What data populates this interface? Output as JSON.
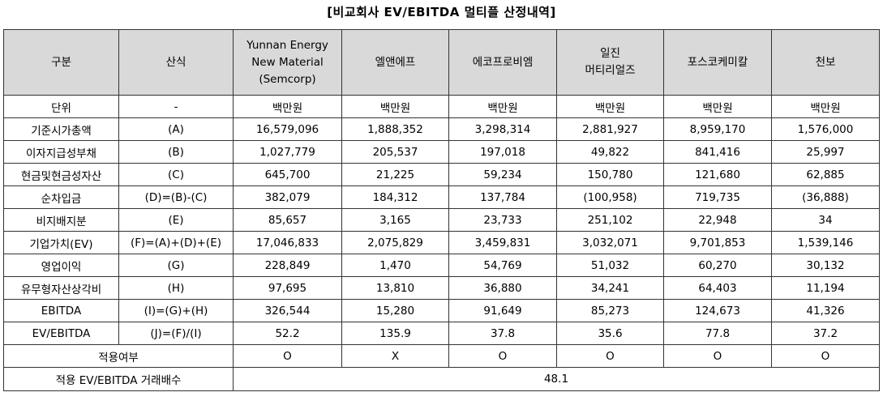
{
  "title": "[비교회사 EV/EBITDA 멀티플 산정내역]",
  "headers": {
    "label": "구분",
    "formula": "산식",
    "companies": [
      {
        "line1": "Yunnan Energy",
        "line2": "New Material",
        "line3": "(Semcorp)"
      },
      {
        "line1": "엘앤에프",
        "line2": "",
        "line3": ""
      },
      {
        "line1": "에코프로비엠",
        "line2": "",
        "line3": ""
      },
      {
        "line1": "일진",
        "line2": "머티리얼즈",
        "line3": ""
      },
      {
        "line1": "포스코케미칼",
        "line2": "",
        "line3": ""
      },
      {
        "line1": "천보",
        "line2": "",
        "line3": ""
      }
    ]
  },
  "rows": [
    {
      "label": "단위",
      "formula": "-",
      "values": [
        "백만원",
        "백만원",
        "백만원",
        "백만원",
        "백만원",
        "백만원"
      ]
    },
    {
      "label": "기준시가총액",
      "formula": "(A)",
      "values": [
        "16,579,096",
        "1,888,352",
        "3,298,314",
        "2,881,927",
        "8,959,170",
        "1,576,000"
      ]
    },
    {
      "label": "이자지급성부채",
      "formula": "(B)",
      "values": [
        "1,027,779",
        "205,537",
        "197,018",
        "49,822",
        "841,416",
        "25,997"
      ]
    },
    {
      "label": "현금및현금성자산",
      "formula": "(C)",
      "values": [
        "645,700",
        "21,225",
        "59,234",
        "150,780",
        "121,680",
        "62,885"
      ]
    },
    {
      "label": "순차입금",
      "formula": "(D)=(B)-(C)",
      "values": [
        "382,079",
        "184,312",
        "137,784",
        "(100,958)",
        "719,735",
        "(36,888)"
      ]
    },
    {
      "label": "비지배지분",
      "formula": "(E)",
      "values": [
        "85,657",
        "3,165",
        "23,733",
        "251,102",
        "22,948",
        "34"
      ]
    },
    {
      "label": "기업가치(EV)",
      "formula": "(F)=(A)+(D)+(E)",
      "values": [
        "17,046,833",
        "2,075,829",
        "3,459,831",
        "3,032,071",
        "9,701,853",
        "1,539,146"
      ]
    },
    {
      "label": "영업이익",
      "formula": "(G)",
      "values": [
        "228,849",
        "1,470",
        "54,769",
        "51,032",
        "60,270",
        "30,132"
      ]
    },
    {
      "label": "유무형자산상각비",
      "formula": "(H)",
      "values": [
        "97,695",
        "13,810",
        "36,880",
        "34,241",
        "64,403",
        "11,194"
      ]
    },
    {
      "label": "EBITDA",
      "formula": "(I)=(G)+(H)",
      "values": [
        "326,544",
        "15,280",
        "91,649",
        "85,273",
        "124,673",
        "41,326"
      ]
    },
    {
      "label": "EV/EBITDA",
      "formula": "(J)=(F)/(I)",
      "values": [
        "52.2",
        "135.9",
        "37.8",
        "35.6",
        "77.8",
        "37.2"
      ]
    }
  ],
  "applicability": {
    "label": "적용여부",
    "values": [
      "O",
      "X",
      "O",
      "O",
      "O",
      "O"
    ]
  },
  "multiple": {
    "label": "적용 EV/EBITDA 거래배수",
    "value": "48.1"
  }
}
